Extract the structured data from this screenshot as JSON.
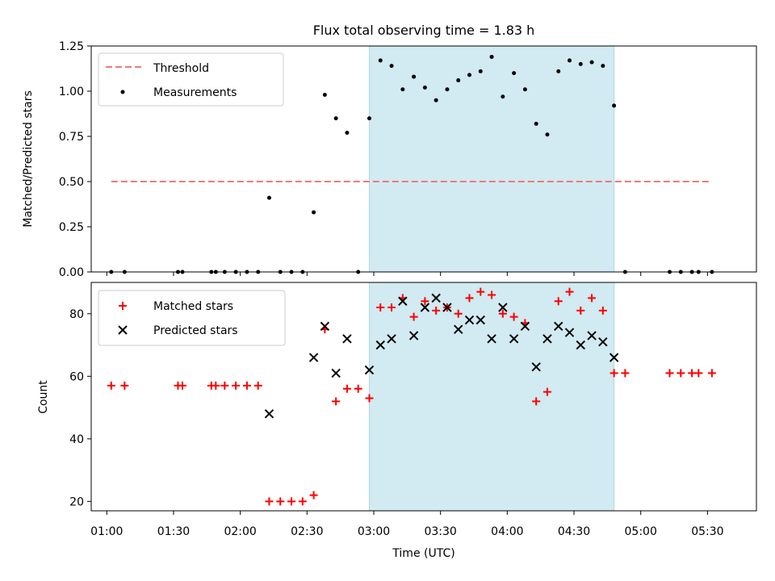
{
  "chart_data": [
    {
      "type": "scatter",
      "title": "Flux total observing time = 1.83 h",
      "xlabel": "",
      "ylabel": "Matched/Predicted stars",
      "ylim": [
        0,
        1.25
      ],
      "yticks": [
        "0.00",
        "0.25",
        "0.50",
        "0.75",
        "1.00",
        "1.25"
      ],
      "grid": false,
      "legend_position": "top-left",
      "shaded_interval": [
        "02:58",
        "04:48"
      ],
      "threshold": {
        "name": "Threshold",
        "value": 0.5,
        "x_start": "01:02",
        "x_end": "05:32",
        "color": "#f07a7a"
      },
      "series": [
        {
          "name": "Measurements",
          "color": "#000000",
          "points": [
            [
              "01:02",
              0
            ],
            [
              "01:08",
              0
            ],
            [
              "01:32",
              0
            ],
            [
              "01:34",
              0
            ],
            [
              "01:47",
              0
            ],
            [
              "01:49",
              0
            ],
            [
              "01:53",
              0
            ],
            [
              "01:58",
              0
            ],
            [
              "02:03",
              0
            ],
            [
              "02:08",
              0
            ],
            [
              "02:13",
              0.41
            ],
            [
              "02:18",
              0
            ],
            [
              "02:23",
              0
            ],
            [
              "02:28",
              0
            ],
            [
              "02:33",
              0.33
            ],
            [
              "02:38",
              0.98
            ],
            [
              "02:43",
              0.85
            ],
            [
              "02:48",
              0.77
            ],
            [
              "02:53",
              0
            ],
            [
              "02:58",
              0.85
            ],
            [
              "03:03",
              1.17
            ],
            [
              "03:08",
              1.14
            ],
            [
              "03:13",
              1.01
            ],
            [
              "03:18",
              1.08
            ],
            [
              "03:23",
              1.02
            ],
            [
              "03:28",
              0.95
            ],
            [
              "03:33",
              1.01
            ],
            [
              "03:38",
              1.06
            ],
            [
              "03:43",
              1.09
            ],
            [
              "03:48",
              1.11
            ],
            [
              "03:53",
              1.19
            ],
            [
              "03:58",
              0.97
            ],
            [
              "04:03",
              1.1
            ],
            [
              "04:08",
              1.01
            ],
            [
              "04:13",
              0.82
            ],
            [
              "04:18",
              0.76
            ],
            [
              "04:23",
              1.11
            ],
            [
              "04:28",
              1.17
            ],
            [
              "04:33",
              1.15
            ],
            [
              "04:38",
              1.16
            ],
            [
              "04:43",
              1.14
            ],
            [
              "04:48",
              0.92
            ],
            [
              "04:53",
              0
            ],
            [
              "05:13",
              0
            ],
            [
              "05:18",
              0
            ],
            [
              "05:23",
              0
            ],
            [
              "05:26",
              0
            ],
            [
              "05:32",
              0
            ]
          ]
        }
      ]
    },
    {
      "type": "scatter",
      "title": "",
      "xlabel": "Time (UTC)",
      "ylabel": "Count",
      "ylim": [
        17,
        90
      ],
      "yticks": [
        "20",
        "40",
        "60",
        "80"
      ],
      "xticks": [
        "01:00",
        "01:30",
        "02:00",
        "02:30",
        "03:00",
        "03:30",
        "04:00",
        "04:30",
        "05:00",
        "05:30"
      ],
      "xlim": [
        "00:53",
        "05:52"
      ],
      "grid": false,
      "legend_position": "top-left",
      "shaded_interval": [
        "02:58",
        "04:48"
      ],
      "series": [
        {
          "name": "Matched stars",
          "color": "#ff0000",
          "marker": "plus",
          "points": [
            [
              "01:02",
              57
            ],
            [
              "01:08",
              57
            ],
            [
              "01:32",
              57
            ],
            [
              "01:34",
              57
            ],
            [
              "01:47",
              57
            ],
            [
              "01:49",
              57
            ],
            [
              "01:53",
              57
            ],
            [
              "01:58",
              57
            ],
            [
              "02:03",
              57
            ],
            [
              "02:08",
              57
            ],
            [
              "02:13",
              20
            ],
            [
              "02:18",
              20
            ],
            [
              "02:23",
              20
            ],
            [
              "02:28",
              20
            ],
            [
              "02:33",
              22
            ],
            [
              "02:38",
              75
            ],
            [
              "02:43",
              52
            ],
            [
              "02:48",
              56
            ],
            [
              "02:53",
              56
            ],
            [
              "02:58",
              53
            ],
            [
              "03:03",
              82
            ],
            [
              "03:08",
              82
            ],
            [
              "03:13",
              85
            ],
            [
              "03:18",
              79
            ],
            [
              "03:23",
              84
            ],
            [
              "03:28",
              81
            ],
            [
              "03:33",
              82
            ],
            [
              "03:38",
              80
            ],
            [
              "03:43",
              85
            ],
            [
              "03:48",
              87
            ],
            [
              "03:53",
              86
            ],
            [
              "03:58",
              80
            ],
            [
              "04:03",
              79
            ],
            [
              "04:08",
              77
            ],
            [
              "04:13",
              52
            ],
            [
              "04:18",
              55
            ],
            [
              "04:23",
              84
            ],
            [
              "04:28",
              87
            ],
            [
              "04:33",
              81
            ],
            [
              "04:38",
              85
            ],
            [
              "04:43",
              81
            ],
            [
              "04:48",
              61
            ],
            [
              "04:53",
              61
            ],
            [
              "05:13",
              61
            ],
            [
              "05:18",
              61
            ],
            [
              "05:23",
              61
            ],
            [
              "05:26",
              61
            ],
            [
              "05:32",
              61
            ]
          ]
        },
        {
          "name": "Predicted stars",
          "color": "#000000",
          "marker": "x",
          "points": [
            [
              "02:13",
              48
            ],
            [
              "02:33",
              66
            ],
            [
              "02:38",
              76
            ],
            [
              "02:43",
              61
            ],
            [
              "02:48",
              72
            ],
            [
              "02:58",
              62
            ],
            [
              "03:03",
              70
            ],
            [
              "03:08",
              72
            ],
            [
              "03:13",
              84
            ],
            [
              "03:18",
              73
            ],
            [
              "03:23",
              82
            ],
            [
              "03:28",
              85
            ],
            [
              "03:33",
              82
            ],
            [
              "03:38",
              75
            ],
            [
              "03:43",
              78
            ],
            [
              "03:48",
              78
            ],
            [
              "03:53",
              72
            ],
            [
              "03:58",
              82
            ],
            [
              "04:03",
              72
            ],
            [
              "04:08",
              76
            ],
            [
              "04:13",
              63
            ],
            [
              "04:18",
              72
            ],
            [
              "04:23",
              76
            ],
            [
              "04:28",
              74
            ],
            [
              "04:33",
              70
            ],
            [
              "04:38",
              73
            ],
            [
              "04:43",
              71
            ],
            [
              "04:48",
              66
            ]
          ]
        }
      ]
    }
  ]
}
